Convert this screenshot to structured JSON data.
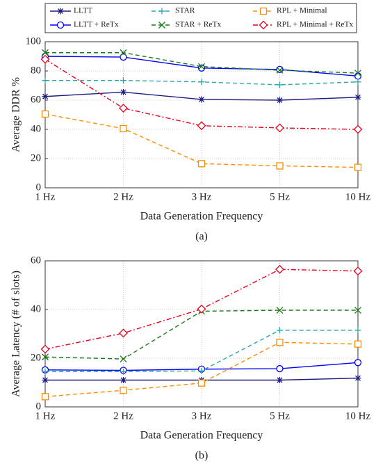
{
  "chart_data": [
    {
      "type": "line",
      "xlabel": "Data Generation Frequency",
      "ylabel": "Average DDR %",
      "caption": "(a)",
      "categories": [
        "1 Hz",
        "2 Hz",
        "3 Hz",
        "5 Hz",
        "10 Hz"
      ],
      "ylim": [
        0,
        100
      ],
      "yticks": [
        0,
        20,
        40,
        60,
        80,
        100
      ],
      "grid": true,
      "series": [
        {
          "name": "LLTT",
          "color": "#1c1c80",
          "marker": "asterisk",
          "dash": "solid",
          "values": [
            62.5,
            65.5,
            60.5,
            60,
            62
          ]
        },
        {
          "name": "LLTT + ReTx",
          "color": "#0000ff",
          "marker": "circle",
          "dash": "solid",
          "values": [
            90,
            89.5,
            82,
            81,
            76.5
          ]
        },
        {
          "name": "STAR",
          "color": "#2aa6a6",
          "marker": "plus",
          "dash": "dashed",
          "values": [
            73.5,
            73.5,
            72.5,
            70.5,
            72.5
          ]
        },
        {
          "name": "STAR + ReTx",
          "color": "#1a7a1a",
          "marker": "x",
          "dash": "dashed",
          "values": [
            92.5,
            92.5,
            83,
            80.5,
            78.5
          ]
        },
        {
          "name": "RPL + Minimal",
          "color": "#ff8c00",
          "marker": "square",
          "dash": "dashed",
          "values": [
            50.5,
            40.5,
            16.5,
            15,
            14
          ]
        },
        {
          "name": "RPL + Minimal + ReTx",
          "color": "#e8001a",
          "marker": "diamond",
          "dash": "dashdot",
          "values": [
            88,
            54.5,
            42.5,
            41,
            40
          ]
        }
      ]
    },
    {
      "type": "line",
      "xlabel": "Data Generation Frequency",
      "ylabel": "Average Latency (# of slots)",
      "caption": "(b)",
      "categories": [
        "1 Hz",
        "2 Hz",
        "3 Hz",
        "5 Hz",
        "10 Hz"
      ],
      "ylim": [
        0,
        60
      ],
      "yticks": [
        0,
        20,
        40,
        60
      ],
      "grid": true,
      "series": [
        {
          "color": "#1c1c80",
          "marker": "asterisk",
          "dash": "solid",
          "values": [
            11,
            11,
            11,
            11,
            11.8
          ]
        },
        {
          "color": "#0000ff",
          "marker": "circle",
          "dash": "solid",
          "values": [
            15.2,
            15,
            15.5,
            15.7,
            18.2
          ]
        },
        {
          "color": "#2aa6a6",
          "marker": "plus",
          "dash": "dashed",
          "values": [
            14.5,
            14.5,
            14.8,
            31.5,
            31.5
          ]
        },
        {
          "color": "#1a7a1a",
          "marker": "x",
          "dash": "dashed",
          "values": [
            20.5,
            19.7,
            39.3,
            39.7,
            39.7
          ]
        },
        {
          "color": "#ff8c00",
          "marker": "square",
          "dash": "dashed",
          "values": [
            4.2,
            6.8,
            9.8,
            26.5,
            25.8
          ]
        },
        {
          "color": "#e8001a",
          "marker": "diamond",
          "dash": "dashdot",
          "values": [
            23.7,
            30.3,
            40.2,
            56.5,
            55.8
          ]
        }
      ]
    }
  ]
}
